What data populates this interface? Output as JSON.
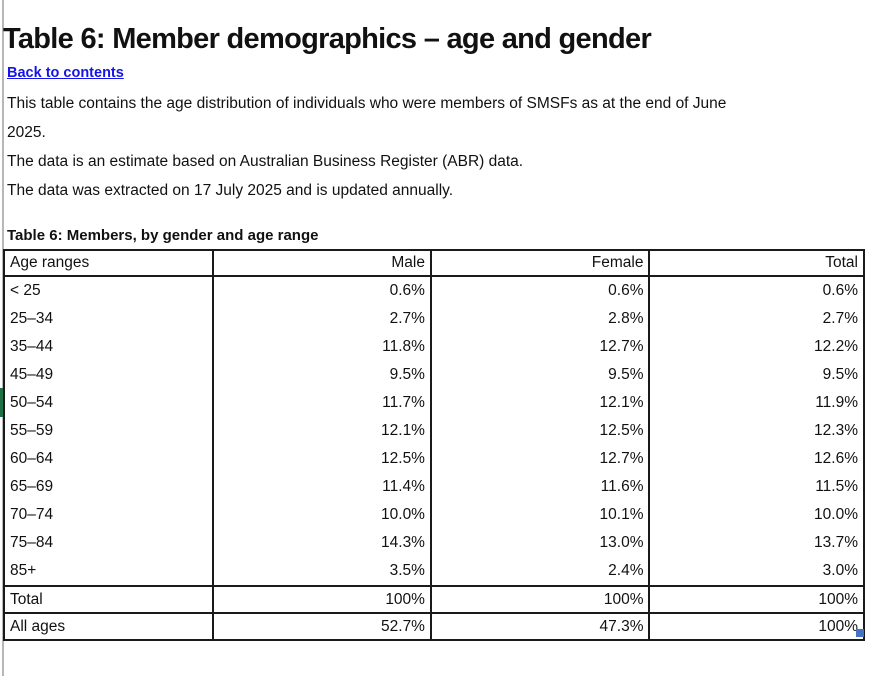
{
  "page": {
    "title": "Table 6: Member demographics – age and gender",
    "back_link": "Back to contents",
    "paragraphs": [
      [
        "This table contains the age distribution of individuals who were members of SMSFs as at the end of June",
        "2025."
      ],
      [
        "The data is an estimate based on Australian Business Register (ABR) data."
      ],
      [
        "The data was extracted on 17 July 2025 and is updated annually."
      ]
    ]
  },
  "table": {
    "caption": "Table 6: Members, by gender and age range",
    "columns": [
      "Age ranges",
      "Male",
      "Female",
      "Total"
    ],
    "rows": [
      {
        "label": "< 25",
        "male": "0.6%",
        "female": "0.6%",
        "total": "0.6%"
      },
      {
        "label": "25–34",
        "male": "2.7%",
        "female": "2.8%",
        "total": "2.7%"
      },
      {
        "label": "35–44",
        "male": "11.8%",
        "female": "12.7%",
        "total": "12.2%"
      },
      {
        "label": "45–49",
        "male": "9.5%",
        "female": "9.5%",
        "total": "9.5%"
      },
      {
        "label": "50–54",
        "male": "11.7%",
        "female": "12.1%",
        "total": "11.9%"
      },
      {
        "label": "55–59",
        "male": "12.1%",
        "female": "12.5%",
        "total": "12.3%"
      },
      {
        "label": "60–64",
        "male": "12.5%",
        "female": "12.7%",
        "total": "12.6%"
      },
      {
        "label": "65–69",
        "male": "11.4%",
        "female": "11.6%",
        "total": "11.5%"
      },
      {
        "label": "70–74",
        "male": "10.0%",
        "female": "10.1%",
        "total": "10.0%"
      },
      {
        "label": "75–84",
        "male": "14.3%",
        "female": "13.0%",
        "total": "13.7%"
      },
      {
        "label": "85+",
        "male": "3.5%",
        "female": "2.4%",
        "total": "3.0%"
      }
    ],
    "summary_rows": [
      {
        "label": "Total",
        "male": "100%",
        "female": "100%",
        "total": "100%"
      },
      {
        "label": "All ages",
        "male": "52.7%",
        "female": "47.3%",
        "total": "100%"
      }
    ]
  },
  "colors": {
    "link_blue": "#1414e8",
    "accent_green": "#1f7145",
    "handle_blue": "#4472c4",
    "border_black": "#1a1a1a"
  }
}
